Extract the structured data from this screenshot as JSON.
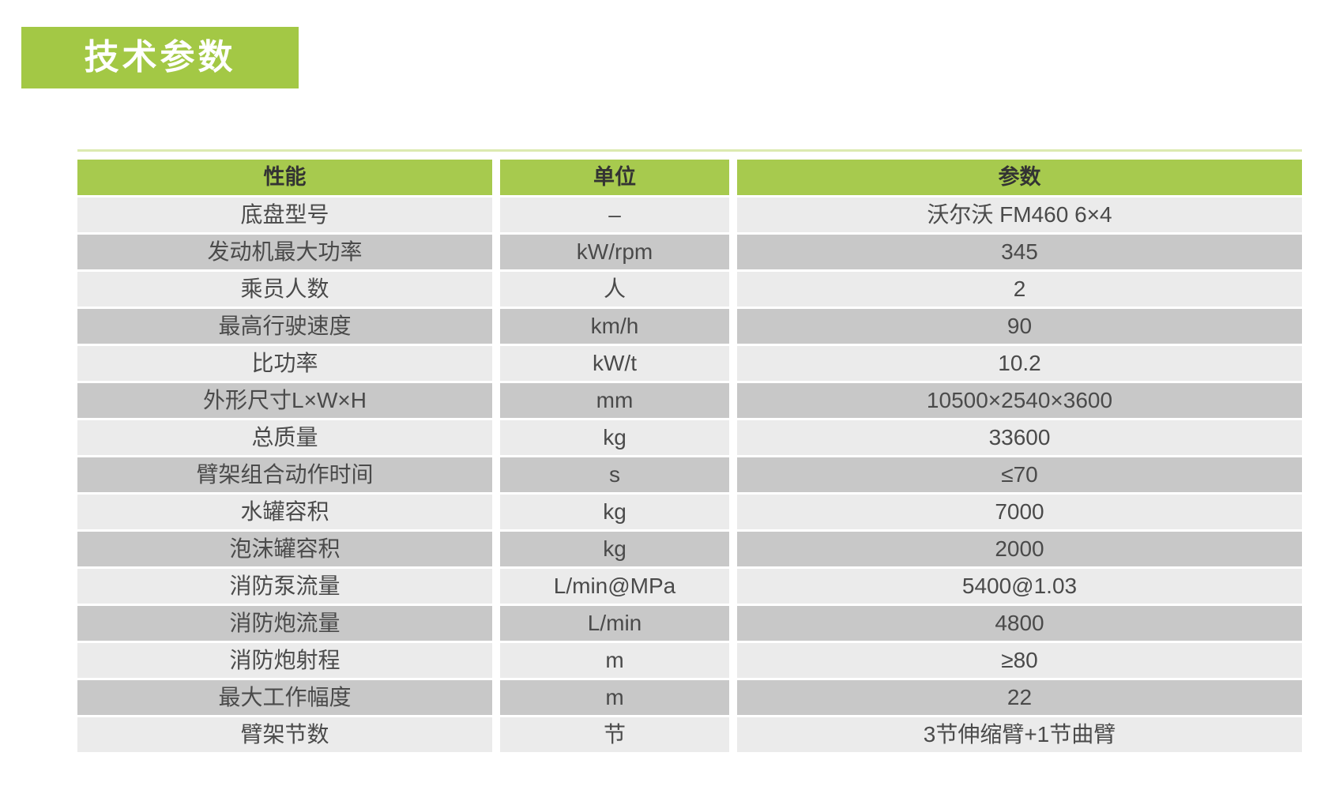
{
  "title": {
    "label": "技术参数"
  },
  "table": {
    "columns": [
      "性能",
      "单位",
      "参数"
    ],
    "rows": [
      {
        "property": "底盘型号",
        "unit": "–",
        "value": "沃尔沃 FM460 6×4"
      },
      {
        "property": "发动机最大功率",
        "unit": "kW/rpm",
        "value": "345"
      },
      {
        "property": "乘员人数",
        "unit": "人",
        "value": "2"
      },
      {
        "property": "最高行驶速度",
        "unit": "km/h",
        "value": "90"
      },
      {
        "property": "比功率",
        "unit": "kW/t",
        "value": "10.2"
      },
      {
        "property": "外形尺寸L×W×H",
        "unit": "mm",
        "value": "10500×2540×3600"
      },
      {
        "property": "总质量",
        "unit": "kg",
        "value": "33600"
      },
      {
        "property": "臂架组合动作时间",
        "unit": "s",
        "value": "≤70"
      },
      {
        "property": "水罐容积",
        "unit": "kg",
        "value": "7000"
      },
      {
        "property": "泡沫罐容积",
        "unit": "kg",
        "value": "2000"
      },
      {
        "property": "消防泵流量",
        "unit": "L/min@MPa",
        "value": "5400@1.03"
      },
      {
        "property": "消防炮流量",
        "unit": "L/min",
        "value": "4800"
      },
      {
        "property": "消防炮射程",
        "unit": "m",
        "value": "≥80"
      },
      {
        "property": "最大工作幅度",
        "unit": "m",
        "value": "22"
      },
      {
        "property": "臂架节数",
        "unit": "节",
        "value": "3节伸缩臂+1节曲臂"
      }
    ]
  },
  "colors": {
    "title_green": "#a3c845",
    "header_green": "#a7ca4e",
    "pale_green_rule": "#dceab0",
    "row_light": "#ebebeb",
    "row_dark": "#c8c8c8",
    "header_text": "#333333",
    "cell_text": "#4a4a4a",
    "title_text": "#ffffff"
  }
}
